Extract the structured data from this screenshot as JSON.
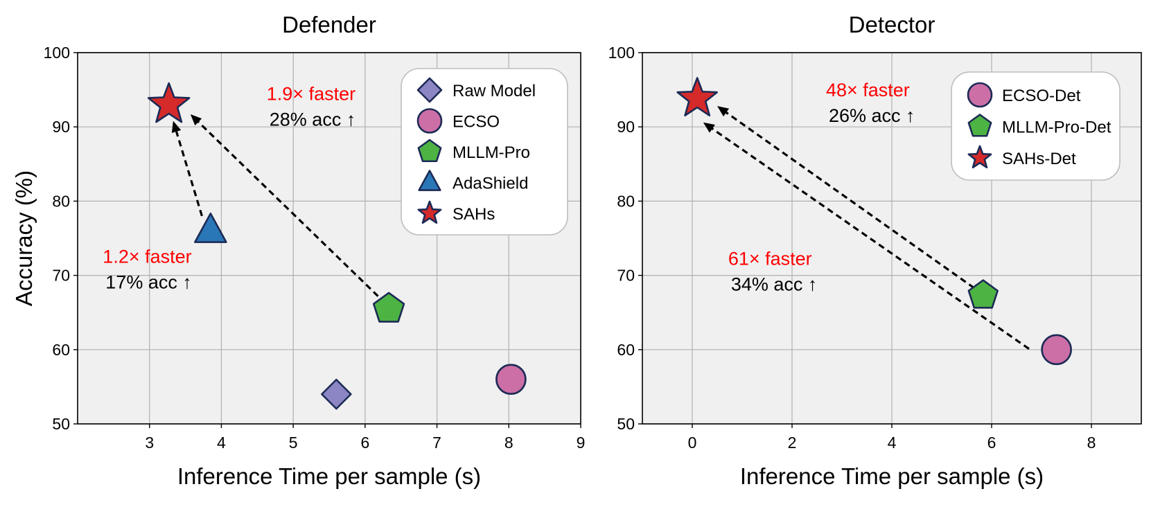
{
  "chart_data": [
    {
      "type": "scatter",
      "title": "Defender",
      "xlabel": "Inference Time per sample (s)",
      "ylabel": "Accuracy (%)",
      "xlim": [
        2,
        9
      ],
      "ylim": [
        50,
        100
      ],
      "xticks": [
        3,
        4,
        5,
        6,
        7,
        8,
        9
      ],
      "yticks": [
        50,
        60,
        70,
        80,
        90,
        100
      ],
      "grid": true,
      "legend_position": "top-right",
      "series": [
        {
          "name": "Raw Model",
          "marker": "diamond",
          "color": "#8c86c4",
          "x": 5.6,
          "y": 54
        },
        {
          "name": "ECSO",
          "marker": "circle",
          "color": "#cc6fa6",
          "x": 8.03,
          "y": 56
        },
        {
          "name": "MLLM-Pro",
          "marker": "pentagon",
          "color": "#4db343",
          "x": 6.33,
          "y": 65.5
        },
        {
          "name": "AdaShield",
          "marker": "triangle",
          "color": "#2a77b8",
          "x": 3.85,
          "y": 76
        },
        {
          "name": "SAHs",
          "marker": "star",
          "color": "#d42a2a",
          "x": 3.27,
          "y": 93
        }
      ],
      "arrows": [
        {
          "from": [
            3.73,
            78
          ],
          "to": [
            3.33,
            90.8
          ]
        },
        {
          "from": [
            6.18,
            67.2
          ],
          "to": [
            3.57,
            91.7
          ]
        }
      ],
      "annotations": [
        {
          "speed": "1.2× faster",
          "acc": "17% acc ↑",
          "x": 2.35,
          "y": 71.7
        },
        {
          "speed": "1.9× faster",
          "acc": "28% acc ↑",
          "x": 4.63,
          "y": 93.6
        }
      ]
    },
    {
      "type": "scatter",
      "title": "Detector",
      "xlabel": "Inference Time per sample (s)",
      "ylabel": "",
      "xlim": [
        -1,
        9
      ],
      "ylim": [
        50,
        100
      ],
      "xticks": [
        0,
        2,
        4,
        6,
        8
      ],
      "yticks": [
        50,
        60,
        70,
        80,
        90,
        100
      ],
      "grid": true,
      "legend_position": "top-right",
      "series": [
        {
          "name": "ECSO-Det",
          "marker": "circle",
          "color": "#cc6fa6",
          "x": 7.3,
          "y": 60
        },
        {
          "name": "MLLM-Pro-Det",
          "marker": "pentagon",
          "color": "#4db343",
          "x": 5.83,
          "y": 67.3
        },
        {
          "name": "SAHs-Det",
          "marker": "star",
          "color": "#d42a2a",
          "x": 0.1,
          "y": 93.8
        }
      ],
      "arrows": [
        {
          "from": [
            5.65,
            68.3
          ],
          "to": [
            0.5,
            92.8
          ]
        },
        {
          "from": [
            6.75,
            60.1
          ],
          "to": [
            0.22,
            90.6
          ]
        }
      ],
      "annotations": [
        {
          "speed": "48× faster",
          "acc": "26% acc ↑",
          "x": 2.68,
          "y": 94.1
        },
        {
          "speed": "61× faster",
          "acc": "34% acc ↑",
          "x": 0.72,
          "y": 71.4
        }
      ]
    }
  ]
}
